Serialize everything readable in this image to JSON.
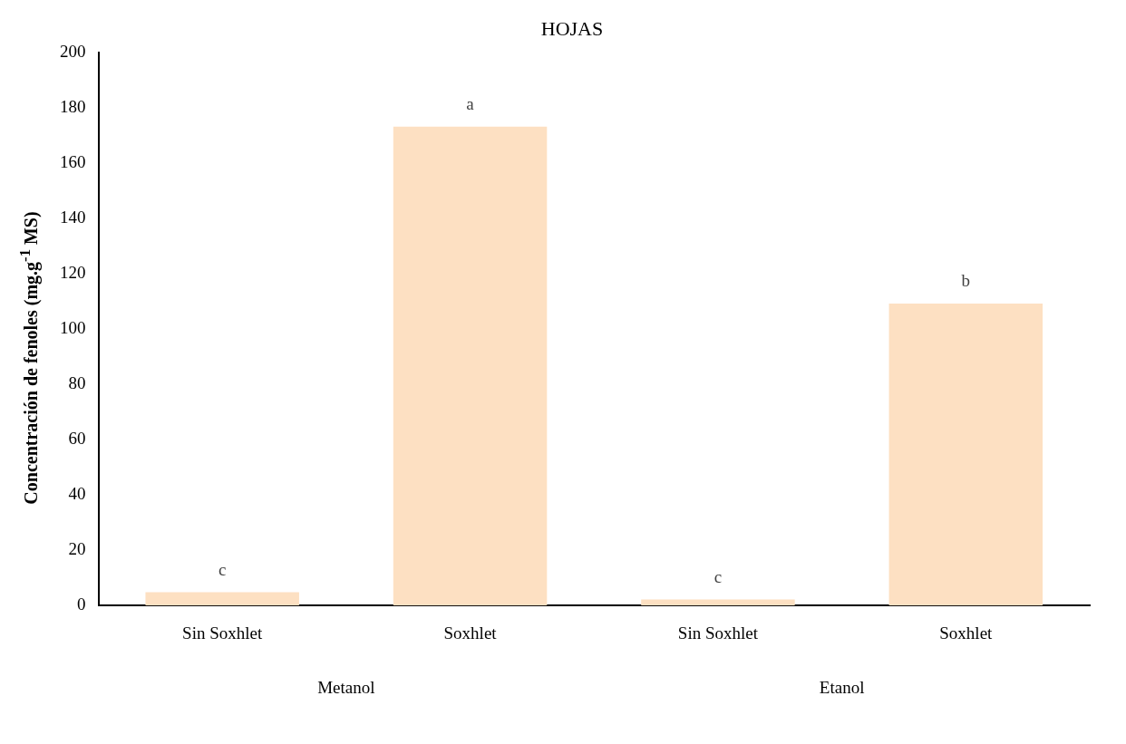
{
  "chart_data": {
    "type": "bar",
    "title": "HOJAS",
    "ylabel": "Concentración de fenoles (mg.g$^{-1}$ MS)",
    "categories": [
      "Sin Soxhlet",
      "Soxhlet",
      "Sin Soxhlet",
      "Soxhlet"
    ],
    "values": [
      4.8,
      173.3,
      2.2,
      109.3
    ],
    "value_labels": [
      "c",
      "a",
      "c",
      "b"
    ],
    "color": "#fde0c2",
    "ylim": [
      0,
      200
    ],
    "yticks": [
      0,
      20,
      40,
      60,
      80,
      100,
      120,
      140,
      160,
      180,
      200
    ],
    "grid": false,
    "legend": false,
    "annotations": [
      "Metanol",
      "Etanol"
    ]
  }
}
